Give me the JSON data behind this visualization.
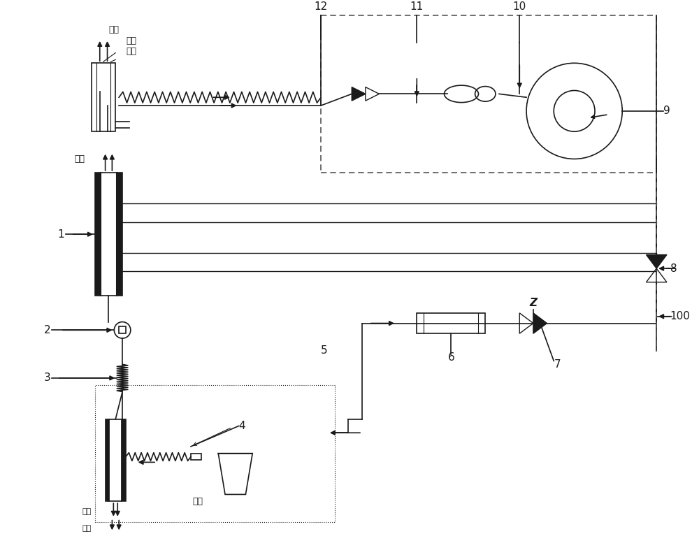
{
  "bg_color": "#ffffff",
  "line_color": "#1a1a1a",
  "dashed_color": "#555555",
  "figsize": [
    10.0,
    7.97
  ],
  "dpi": 100,
  "labels": {
    "huqi_top": "呼气",
    "qiti_buyi": "气体\n补偿",
    "xiqi_mid": "吸气",
    "label1": "1",
    "label2": "2",
    "label3": "3",
    "label4": "4",
    "label5": "5",
    "label6": "6",
    "label7": "7",
    "label8": "8",
    "label9": "9",
    "label10": "10",
    "label11": "11",
    "label12": "12",
    "label100": "100",
    "huqi_bot": "呼气",
    "xiqi_bot": "吸气",
    "paitan": "排痰"
  }
}
